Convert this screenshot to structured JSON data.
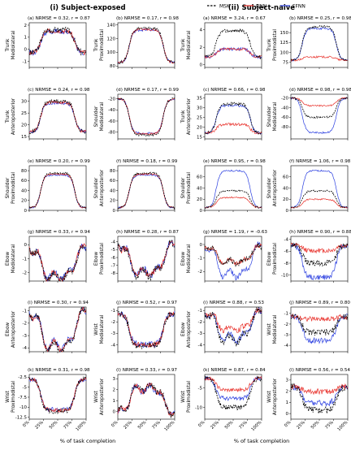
{
  "headers": {
    "left": "(i) Subject-exposed",
    "right": "(ii) Subject-naive"
  },
  "legend": {
    "items": [
      {
        "label": "MSK",
        "color": "#000000",
        "style": "dashed"
      },
      {
        "label": "RNN",
        "color": "#e8302a",
        "style": "solid"
      },
      {
        "label": "FFNN",
        "color": "#2b3fe0",
        "style": "solid"
      }
    ]
  },
  "xlabel": "% of task completion",
  "chart_data": [
    {
      "type": "line",
      "col": 0,
      "row": 0,
      "id": "(a)",
      "title": "(a) NRMSE = 0.32,  r = 0.87",
      "ylabel": [
        "Trunk",
        "Mediolateral"
      ],
      "ylim": [
        -1.5,
        2.2
      ],
      "yticks": [
        -1,
        0,
        1,
        2
      ],
      "shape": "plateau",
      "base": -0.3,
      "peak": 1.6,
      "noise": 0.25
    },
    {
      "type": "line",
      "col": 1,
      "row": 0,
      "id": "(b)",
      "title": "(b) NRMSE = 0.17,  r = 0.98",
      "ylabel": [
        "Trunk",
        "Proximodistal"
      ],
      "ylim": [
        78,
        143
      ],
      "yticks": [
        80,
        100,
        120,
        140
      ],
      "shape": "plateau",
      "base": 85,
      "peak": 135,
      "noise": 2
    },
    {
      "type": "line",
      "col": 2,
      "row": 0,
      "id": "(a)",
      "title": "(a) NRMSE = 3.24,  r = 0.67",
      "ylabel": [
        "Trunk",
        "Mediolateral"
      ],
      "ylim": [
        -0.3,
        4.8
      ],
      "yticks": [
        0,
        2,
        4
      ],
      "shape": "plateau",
      "base": 0.9,
      "peak": 3.9,
      "noise": 0.2,
      "rnn_scale": 0.3,
      "ffnn_scale": 0.3
    },
    {
      "type": "line",
      "col": 3,
      "row": 0,
      "id": "(b)",
      "title": "(b) NRMSE = 0.25,  r = 0.98",
      "ylabel": [
        "Trunk",
        "Proximodistal"
      ],
      "ylim": [
        62,
        175
      ],
      "yticks": [
        75,
        100,
        125,
        150
      ],
      "shape": "plateau",
      "base": 80,
      "peak": 165,
      "noise": 3,
      "rnn_scale": 0.1
    },
    {
      "type": "line",
      "col": 0,
      "row": 1,
      "id": "(c)",
      "title": "(c) NRMSE = 0.24,  r = 0.98",
      "ylabel": [
        "Trunk",
        "Anteroposterior"
      ],
      "ylim": [
        14,
        33
      ],
      "yticks": [
        15,
        20,
        25,
        30
      ],
      "shape": "plateau",
      "base": 17,
      "peak": 30,
      "noise": 0.8
    },
    {
      "type": "line",
      "col": 1,
      "row": 1,
      "id": "(d)",
      "title": "(d) NRMSE = 0.17,  r = 0.99",
      "ylabel": [
        "Shoulder",
        "Mediolateral"
      ],
      "ylim": [
        -92,
        -12
      ],
      "yticks": [
        -80,
        -60,
        -40,
        -20
      ],
      "shape": "valley",
      "base": -20,
      "peak": -85,
      "noise": 2
    },
    {
      "type": "line",
      "col": 2,
      "row": 1,
      "id": "(c)",
      "title": "(c) NRMSE = 0.66,  r = 0.98",
      "ylabel": [
        "Trunk",
        "Anteroposterior"
      ],
      "ylim": [
        14,
        37
      ],
      "yticks": [
        15,
        20,
        25,
        30,
        35
      ],
      "shape": "plateau",
      "base": 17,
      "peak": 32,
      "noise": 0.8,
      "rnn_scale": 0.3
    },
    {
      "type": "line",
      "col": 3,
      "row": 1,
      "id": "(d)",
      "title": "(d) NRMSE = 0.98,  r = 0.98",
      "ylabel": [
        "Shoulder",
        "Mediolateral"
      ],
      "ylim": [
        -105,
        -12
      ],
      "yticks": [
        -80,
        -60,
        -40,
        -20
      ],
      "shape": "valley",
      "base": -20,
      "peak": -60,
      "noise": 2,
      "rnn_scale": 0.4,
      "ffnn_scale": 1.8
    },
    {
      "type": "line",
      "col": 0,
      "row": 2,
      "id": "(e)",
      "title": "(e) NRMSE = 0.20,  r = 0.99",
      "ylabel": [
        "Shoulder",
        "Proximodistal"
      ],
      "ylim": [
        0,
        90
      ],
      "yticks": [
        0,
        20,
        40,
        60,
        80
      ],
      "shape": "plateau",
      "base": 5,
      "peak": 75,
      "noise": 2
    },
    {
      "type": "line",
      "col": 1,
      "row": 2,
      "id": "(f)",
      "title": "(f) NRMSE = 0.18,  r = 0.99",
      "ylabel": [
        "Shoulder",
        "Anteroposterior"
      ],
      "ylim": [
        0,
        90
      ],
      "yticks": [
        0,
        20,
        40,
        60,
        80
      ],
      "shape": "plateau",
      "base": 5,
      "peak": 75,
      "noise": 2
    },
    {
      "type": "line",
      "col": 2,
      "row": 2,
      "id": "(e)",
      "title": "(e) NRMSE = 0.95,  r = 0.98",
      "ylabel": [
        "Shoulder",
        "Proximodistal"
      ],
      "ylim": [
        0,
        80
      ],
      "yticks": [
        0,
        20,
        40,
        60
      ],
      "shape": "plateau",
      "base": 5,
      "peak": 35,
      "noise": 1.5,
      "rnn_scale": 0.6,
      "ffnn_scale": 2.2
    },
    {
      "type": "line",
      "col": 3,
      "row": 2,
      "id": "(f)",
      "title": "(f) NRMSE = 1.06,  r = 0.98",
      "ylabel": [
        "Shoulder",
        "Anteroposterior"
      ],
      "ylim": [
        0,
        80
      ],
      "yticks": [
        0,
        20,
        40,
        60
      ],
      "shape": "plateau",
      "base": 5,
      "peak": 35,
      "noise": 1.5,
      "rnn_scale": 0.5,
      "ffnn_scale": 2.2
    },
    {
      "type": "line",
      "col": 0,
      "row": 3,
      "id": "(g)",
      "title": "(g) NRMSE = 0.33,  r = 0.94",
      "ylabel": [
        "Elbow",
        "Mediolateral"
      ],
      "ylim": [
        -2.6,
        0.6
      ],
      "yticks": [
        -2,
        -1,
        0
      ],
      "shape": "valley",
      "base": -0.3,
      "peak": -2.3,
      "noise": 0.25,
      "wavy": 1
    },
    {
      "type": "line",
      "col": 1,
      "row": 3,
      "id": "(h)",
      "title": "(h) NRMSE = 0.28,  r = 0.87",
      "ylabel": [
        "Elbow",
        "Proximodistal"
      ],
      "ylim": [
        -9,
        -3.3
      ],
      "yticks": [
        -8,
        -7,
        -6,
        -5,
        -4
      ],
      "shape": "valley",
      "base": -4.5,
      "peak": -8,
      "noise": 0.5,
      "wavy": 1
    },
    {
      "type": "line",
      "col": 2,
      "row": 3,
      "id": "(g)",
      "title": "(g) NRMSE = 1.19,  r = -0.63",
      "ylabel": [
        "Elbow",
        "Mediolateral"
      ],
      "ylim": [
        -2.7,
        0.6
      ],
      "yticks": [
        -2,
        -1,
        0
      ],
      "shape": "valley",
      "base": -0.2,
      "peak": -1.3,
      "noise": 0.2,
      "wavy": 1,
      "ffnn_scale": 1.8
    },
    {
      "type": "line",
      "col": 3,
      "row": 3,
      "id": "(h)",
      "title": "(h) NRMSE = 0.90,  r = 0.88",
      "ylabel": [
        "Elbow",
        "Proximodistal"
      ],
      "ylim": [
        -11,
        -3.5
      ],
      "yticks": [
        -10,
        -8,
        -6,
        -4
      ],
      "shape": "valley",
      "base": -5,
      "peak": -8,
      "noise": 0.5,
      "rnn_scale": 0.3,
      "ffnn_scale": 1.8
    },
    {
      "type": "line",
      "col": 0,
      "row": 4,
      "id": "(i)",
      "title": "(i) NRMSE = 0.30,  r = 0.94",
      "ylabel": [
        "Elbow",
        "Anteroposterior"
      ],
      "ylim": [
        -4.3,
        -0.7
      ],
      "yticks": [
        -4,
        -3,
        -2,
        -1
      ],
      "shape": "valley",
      "base": -1.2,
      "peak": -3.9,
      "noise": 0.25,
      "wavy": 1
    },
    {
      "type": "line",
      "col": 1,
      "row": 4,
      "id": "(j)",
      "title": "(j) NRMSE = 0.52,  r = 0.97",
      "ylabel": [
        "Wrist",
        "Mediolateral"
      ],
      "ylim": [
        -4.6,
        -0.7
      ],
      "yticks": [
        -4,
        -3,
        -2,
        -1
      ],
      "shape": "valley",
      "base": -1.3,
      "peak": -4.1,
      "noise": 0.3
    },
    {
      "type": "line",
      "col": 2,
      "row": 4,
      "id": "(i)",
      "title": "(i) NRMSE = 0.88,  r = 0.53",
      "ylabel": [
        "Elbow",
        "Anteroposterior"
      ],
      "ylim": [
        -4.6,
        -0.7
      ],
      "yticks": [
        -4,
        -3,
        -2,
        -1
      ],
      "shape": "valley",
      "base": -1.2,
      "peak": -3.5,
      "noise": 0.3,
      "wavy": 1,
      "rnn_scale": 0.6
    },
    {
      "type": "line",
      "col": 3,
      "row": 4,
      "id": "(j)",
      "title": "(j) NRMSE = 0.89,  r = 0.80",
      "ylabel": [
        "Wrist",
        "Mediolateral"
      ],
      "ylim": [
        -4.6,
        -0.4
      ],
      "yticks": [
        -4,
        -3,
        -2,
        -1
      ],
      "shape": "valley",
      "base": -1.3,
      "peak": -2.8,
      "noise": 0.3,
      "rnn_scale": 0.15,
      "ffnn_scale": 1.5
    },
    {
      "type": "line",
      "col": 0,
      "row": 5,
      "id": "(k)",
      "title": "(k) NRMSE = 0.31,  r = 0.98",
      "ylabel": [
        "Wrist",
        "Proximodistal"
      ],
      "ylim": [
        -13,
        -1.8
      ],
      "yticks": [
        -12.5,
        -10,
        -7.5,
        -5,
        -2.5
      ],
      "shape": "valley",
      "base": -3,
      "peak": -11,
      "noise": 0.6
    },
    {
      "type": "line",
      "col": 1,
      "row": 5,
      "id": "(l)",
      "title": "(l) NRMSE = 0.33,  r = 0.97",
      "ylabel": [
        "Wrist",
        "Anteroposterior"
      ],
      "ylim": [
        -0.7,
        3.4
      ],
      "yticks": [
        0,
        1,
        2,
        3
      ],
      "shape": "plateau",
      "base": 0,
      "peak": 2.2,
      "noise": 0.3,
      "wavy": 1
    },
    {
      "type": "line",
      "col": 2,
      "row": 5,
      "id": "(k)",
      "title": "(k) NRMSE = 0.87,  r = 0.84",
      "ylabel": [
        "Wrist",
        "Proximodistal"
      ],
      "ylim": [
        -13,
        -1.5
      ],
      "yticks": [
        -10,
        -5
      ],
      "shape": "valley",
      "base": -2.5,
      "peak": -10,
      "noise": 0.6,
      "rnn_scale": 0.4,
      "ffnn_scale": 0.7
    },
    {
      "type": "line",
      "col": 3,
      "row": 5,
      "id": "(l)",
      "title": "(l) NRMSE = 0.56,  r = 0.54",
      "ylabel": [
        "Wrist",
        "Anteroposterior"
      ],
      "ylim": [
        -0.5,
        3.5
      ],
      "yticks": [
        0,
        1,
        2,
        3
      ],
      "shape": "plateau",
      "base": 2.4,
      "peak": 0.3,
      "noise": 0.3,
      "rnn_scale": 0.2,
      "ffnn_scale": 0.7
    }
  ],
  "xticks": [
    "0%",
    "25%",
    "50%",
    "75%",
    "100%"
  ]
}
